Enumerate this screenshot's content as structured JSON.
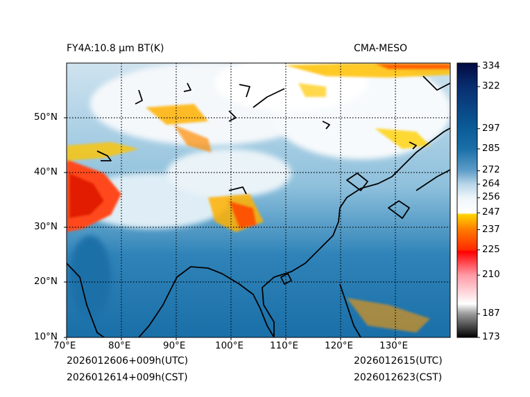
{
  "titles": {
    "left": "FY4A:10.8 µm BT(K)",
    "right": "CMA-MESO"
  },
  "footer": {
    "init_utc": "2026012606+009h(UTC)",
    "init_cst": "2026012614+009h(CST)",
    "valid_utc": "2026012615(UTC)",
    "valid_cst": "2026012623(CST)"
  },
  "axes": {
    "lon_ticks": [
      "70°E",
      "80°E",
      "90°E",
      "100°E",
      "110°E",
      "120°E",
      "130°E"
    ],
    "lat_ticks": [
      "10°N",
      "20°N",
      "30°N",
      "40°N",
      "50°N"
    ]
  },
  "colorbar": {
    "range": [
      173,
      336
    ],
    "ticks": [
      "334",
      "322",
      "297",
      "285",
      "272",
      "264",
      "256",
      "247",
      "237",
      "225",
      "210",
      "187",
      "173"
    ],
    "tick_values": [
      334,
      322,
      297,
      285,
      272,
      264,
      256,
      247,
      237,
      225,
      210,
      187,
      173
    ],
    "stops": [
      {
        "v": 173,
        "c": "#000000"
      },
      {
        "v": 187,
        "c": "#9a9a9a"
      },
      {
        "v": 193,
        "c": "#ffffff"
      },
      {
        "v": 210,
        "c": "#ff9aa6"
      },
      {
        "v": 224,
        "c": "#ff0000"
      },
      {
        "v": 225,
        "c": "#ff2a00"
      },
      {
        "v": 237,
        "c": "#ff7a00"
      },
      {
        "v": 246,
        "c": "#ffd400"
      },
      {
        "v": 247,
        "c": "#ffffff"
      },
      {
        "v": 256,
        "c": "#eef5fa"
      },
      {
        "v": 264,
        "c": "#b8d6e8"
      },
      {
        "v": 272,
        "c": "#5f9ec9"
      },
      {
        "v": 285,
        "c": "#1a6fa8"
      },
      {
        "v": 297,
        "c": "#0b5c98"
      },
      {
        "v": 322,
        "c": "#082e70"
      },
      {
        "v": 336,
        "c": "#020a40"
      }
    ]
  }
}
